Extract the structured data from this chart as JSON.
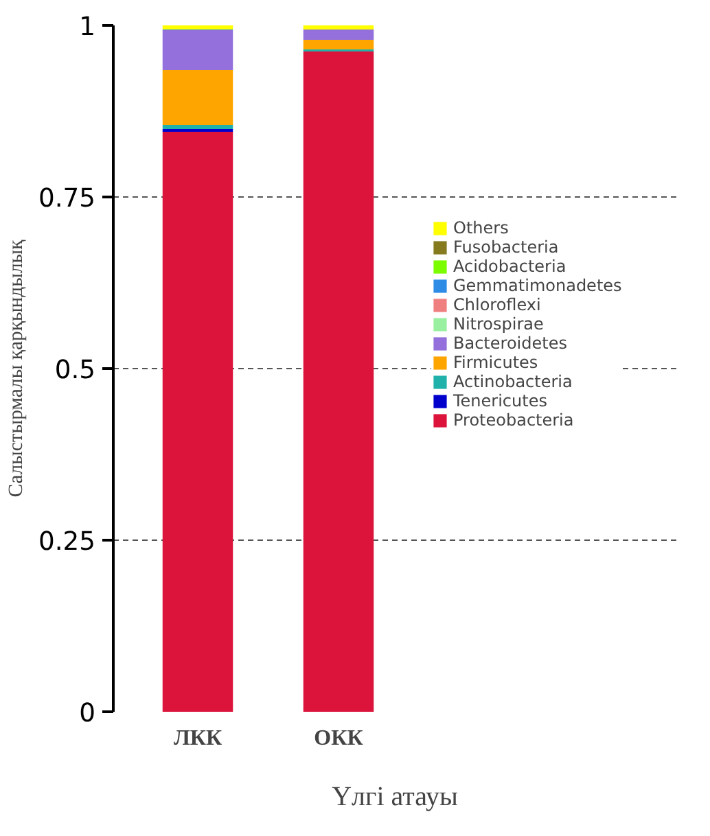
{
  "chart_data": {
    "type": "bar",
    "stacked": true,
    "xlabel": "Үлгі атауы",
    "ylabel": "Салыстырмалы қарқындылық",
    "categories": [
      "ЛКК",
      "ОКК"
    ],
    "series": [
      {
        "name": "Proteobacteria",
        "color": "#dc143c",
        "values": [
          0.845,
          0.962
        ]
      },
      {
        "name": "Tenericutes",
        "color": "#0000cd",
        "values": [
          0.004,
          0
        ]
      },
      {
        "name": "Actinobacteria",
        "color": "#20b2aa",
        "values": [
          0.006,
          0.003
        ]
      },
      {
        "name": "Firmicutes",
        "color": "#ffa500",
        "values": [
          0.08,
          0.014
        ]
      },
      {
        "name": "Bacteroidetes",
        "color": "#9370db",
        "values": [
          0.058,
          0.015
        ]
      },
      {
        "name": "Nitrospirae",
        "color": "#98f0a0",
        "values": [
          0,
          0
        ]
      },
      {
        "name": "Chloroflexi",
        "color": "#f08080",
        "values": [
          0,
          0
        ]
      },
      {
        "name": "Gemmatimonadetes",
        "color": "#2e8ce6",
        "values": [
          0.001,
          0
        ]
      },
      {
        "name": "Acidobacteria",
        "color": "#7cfc00",
        "values": [
          0,
          0
        ]
      },
      {
        "name": "Fusobacteria",
        "color": "#857a1e",
        "values": [
          0,
          0
        ]
      },
      {
        "name": "Others",
        "color": "#ffff00",
        "values": [
          0.006,
          0.006
        ]
      }
    ],
    "ylim": [
      0,
      1
    ],
    "yticks": [
      0,
      0.25,
      0.5,
      0.75,
      1
    ],
    "grid": "y",
    "legend": "right"
  }
}
